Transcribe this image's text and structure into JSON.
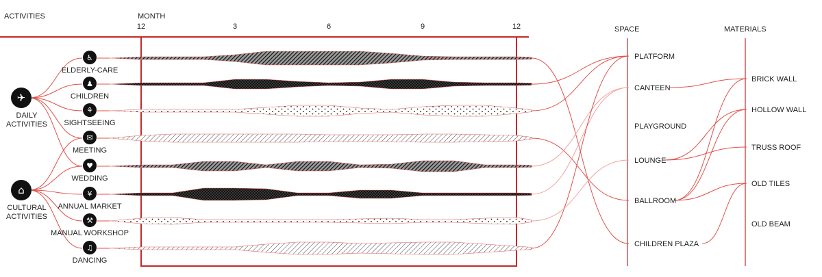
{
  "headers": {
    "activities": "ACTIVITIES",
    "month": "MONTH",
    "space": "SPACE",
    "materials": "MATERIALS"
  },
  "month_ticks": [
    "12",
    "3",
    "6",
    "9",
    "12"
  ],
  "groups": [
    {
      "id": "daily",
      "label_lines": [
        "DAILY",
        "ACTIVITIES"
      ],
      "icon": "running-person-icon"
    },
    {
      "id": "cultural",
      "label_lines": [
        "CULTURAL",
        "ACTIVITIES"
      ],
      "icon": "museum-icon"
    }
  ],
  "activities": [
    {
      "id": "elderly-care",
      "label": "ELDERLY-CARE",
      "icon": "elderly-icon",
      "pattern": "dark-hatch",
      "width": [
        4,
        4,
        4,
        10,
        20,
        20,
        20,
        20,
        14,
        6,
        4,
        4,
        4
      ]
    },
    {
      "id": "children",
      "label": "CHILDREN",
      "icon": "child-icon",
      "pattern": "dark-cross",
      "width": [
        4,
        4,
        4,
        14,
        14,
        8,
        4,
        6,
        14,
        14,
        6,
        4,
        4
      ]
    },
    {
      "id": "sightseeing",
      "label": "SIGHTSEEING",
      "icon": "plant-icon",
      "pattern": "dots",
      "width": [
        4,
        4,
        4,
        4,
        10,
        16,
        16,
        8,
        4,
        12,
        16,
        16,
        8
      ]
    },
    {
      "id": "meeting",
      "label": "MEETING",
      "icon": "chat-icon",
      "pattern": "light-hatch",
      "width": [
        8,
        12,
        12,
        12,
        12,
        12,
        10,
        10,
        10,
        12,
        12,
        10,
        8
      ]
    },
    {
      "id": "wedding",
      "label": "WEDDING",
      "icon": "couple-icon",
      "pattern": "dark-hatch",
      "width": [
        4,
        4,
        14,
        14,
        4,
        14,
        14,
        4,
        6,
        16,
        16,
        4,
        4
      ]
    },
    {
      "id": "annual-market",
      "label": "ANNUAL MARKET",
      "icon": "yen-icon",
      "pattern": "dark-cross",
      "width": [
        4,
        4,
        18,
        18,
        16,
        4,
        4,
        12,
        12,
        4,
        4,
        4,
        4
      ]
    },
    {
      "id": "manual-workshop",
      "label": "MANUAL WORKSHOP",
      "icon": "tools-icon",
      "pattern": "dots",
      "width": [
        8,
        10,
        4,
        4,
        4,
        4,
        4,
        6,
        8,
        4,
        4,
        8,
        10
      ]
    },
    {
      "id": "dancing",
      "label": "DANCING",
      "icon": "dancer-icon",
      "pattern": "light-hatch",
      "width": [
        4,
        4,
        4,
        4,
        12,
        18,
        18,
        14,
        16,
        18,
        18,
        12,
        6
      ]
    }
  ],
  "spaces": [
    {
      "id": "platform",
      "label": "PLATFORM"
    },
    {
      "id": "canteen",
      "label": "CANTEEN"
    },
    {
      "id": "playground",
      "label": "PLAYGROUND"
    },
    {
      "id": "lounge",
      "label": "LOUNGE"
    },
    {
      "id": "ballroom",
      "label": "BALLROOM"
    },
    {
      "id": "children-plaza",
      "label": "CHILDREN PLAZA"
    }
  ],
  "materials": [
    {
      "id": "brick-wall",
      "label": "BRICK WALL"
    },
    {
      "id": "hollow-wall",
      "label": "HOLLOW WALL"
    },
    {
      "id": "truss-roof",
      "label": "TRUSS ROOF"
    },
    {
      "id": "old-tiles",
      "label": "OLD TILES"
    },
    {
      "id": "old-beam",
      "label": "OLD BEAM"
    }
  ],
  "group_links": [
    {
      "group": "daily",
      "activity": "elderly-care"
    },
    {
      "group": "daily",
      "activity": "children"
    },
    {
      "group": "daily",
      "activity": "sightseeing"
    },
    {
      "group": "daily",
      "activity": "meeting"
    },
    {
      "group": "daily",
      "activity": "wedding"
    },
    {
      "group": "cultural",
      "activity": "meeting"
    },
    {
      "group": "cultural",
      "activity": "wedding"
    },
    {
      "group": "cultural",
      "activity": "annual-market"
    },
    {
      "group": "cultural",
      "activity": "manual-workshop"
    },
    {
      "group": "cultural",
      "activity": "dancing"
    }
  ],
  "space_links": [
    {
      "activity": "elderly-care",
      "space": "children-plaza",
      "light": false
    },
    {
      "activity": "children",
      "space": "platform",
      "light": false
    },
    {
      "activity": "sightseeing",
      "space": "platform",
      "light": false
    },
    {
      "activity": "meeting",
      "space": "ballroom",
      "light": false
    },
    {
      "activity": "wedding",
      "space": "canteen",
      "light": true
    },
    {
      "activity": "annual-market",
      "space": "canteen",
      "light": true
    },
    {
      "activity": "manual-workshop",
      "space": "lounge",
      "light": true
    },
    {
      "activity": "dancing",
      "space": "platform",
      "light": false
    }
  ],
  "material_links": [
    {
      "space": "canteen",
      "material": "brick-wall"
    },
    {
      "space": "lounge",
      "material": "hollow-wall"
    },
    {
      "space": "lounge",
      "material": "truss-roof"
    },
    {
      "space": "ballroom",
      "material": "brick-wall"
    },
    {
      "space": "ballroom",
      "material": "hollow-wall"
    },
    {
      "space": "ballroom",
      "material": "old-tiles"
    },
    {
      "space": "children-plaza",
      "material": "old-tiles"
    }
  ],
  "colors": {
    "accent_red": "#c62828",
    "link_red": "#e0504a",
    "ink": "#111111"
  }
}
